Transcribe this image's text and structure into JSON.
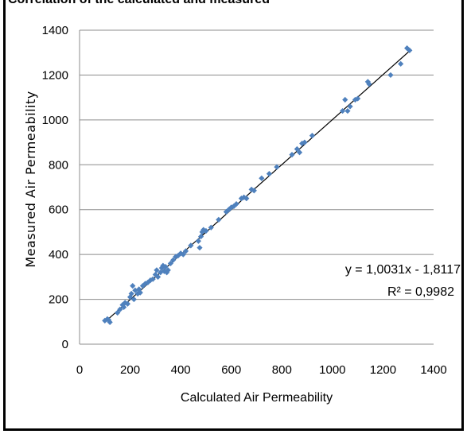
{
  "caption_fragment": "Correlation of the calculated and measured",
  "chart_data": {
    "type": "scatter",
    "title": "",
    "xlabel": "Calculated Air Permeability",
    "ylabel": "Measured Air Permeability",
    "xlim": [
      0,
      1400
    ],
    "ylim": [
      0,
      1400
    ],
    "xticks": [
      "0",
      "200",
      "400",
      "600",
      "800",
      "1000",
      "1200",
      "1400"
    ],
    "yticks": [
      "0",
      "200",
      "400",
      "600",
      "800",
      "1000",
      "1200",
      "1400"
    ],
    "grid": "horizontal",
    "marker_color": "#4f81bd",
    "trendline": {
      "slope": 1.0031,
      "intercept": -1.8117,
      "equation_label": "y = 1,0031x - 1,8117",
      "r2_label": "R² = 0,9982"
    },
    "points": [
      [
        100,
        105
      ],
      [
        110,
        112
      ],
      [
        120,
        98
      ],
      [
        115,
        108
      ],
      [
        150,
        140
      ],
      [
        160,
        155
      ],
      [
        170,
        175
      ],
      [
        175,
        165
      ],
      [
        180,
        185
      ],
      [
        190,
        180
      ],
      [
        200,
        210
      ],
      [
        205,
        225
      ],
      [
        210,
        260
      ],
      [
        215,
        200
      ],
      [
        220,
        240
      ],
      [
        230,
        225
      ],
      [
        235,
        245
      ],
      [
        240,
        230
      ],
      [
        250,
        260
      ],
      [
        260,
        270
      ],
      [
        270,
        275
      ],
      [
        280,
        285
      ],
      [
        290,
        290
      ],
      [
        300,
        310
      ],
      [
        305,
        330
      ],
      [
        310,
        300
      ],
      [
        320,
        320
      ],
      [
        325,
        340
      ],
      [
        330,
        350
      ],
      [
        335,
        325
      ],
      [
        340,
        345
      ],
      [
        345,
        320
      ],
      [
        350,
        330
      ],
      [
        360,
        360
      ],
      [
        370,
        375
      ],
      [
        380,
        390
      ],
      [
        390,
        395
      ],
      [
        400,
        405
      ],
      [
        410,
        400
      ],
      [
        420,
        415
      ],
      [
        440,
        440
      ],
      [
        470,
        460
      ],
      [
        475,
        430
      ],
      [
        480,
        480
      ],
      [
        485,
        500
      ],
      [
        490,
        510
      ],
      [
        500,
        505
      ],
      [
        520,
        520
      ],
      [
        550,
        555
      ],
      [
        580,
        590
      ],
      [
        590,
        600
      ],
      [
        600,
        610
      ],
      [
        610,
        615
      ],
      [
        620,
        625
      ],
      [
        640,
        650
      ],
      [
        650,
        655
      ],
      [
        660,
        650
      ],
      [
        680,
        690
      ],
      [
        690,
        685
      ],
      [
        720,
        740
      ],
      [
        750,
        760
      ],
      [
        780,
        790
      ],
      [
        840,
        845
      ],
      [
        860,
        870
      ],
      [
        870,
        855
      ],
      [
        880,
        895
      ],
      [
        890,
        900
      ],
      [
        920,
        930
      ],
      [
        1040,
        1040
      ],
      [
        1050,
        1090
      ],
      [
        1060,
        1040
      ],
      [
        1070,
        1060
      ],
      [
        1090,
        1090
      ],
      [
        1100,
        1095
      ],
      [
        1140,
        1170
      ],
      [
        1145,
        1160
      ],
      [
        1230,
        1200
      ],
      [
        1270,
        1250
      ],
      [
        1295,
        1320
      ],
      [
        1305,
        1310
      ]
    ]
  }
}
